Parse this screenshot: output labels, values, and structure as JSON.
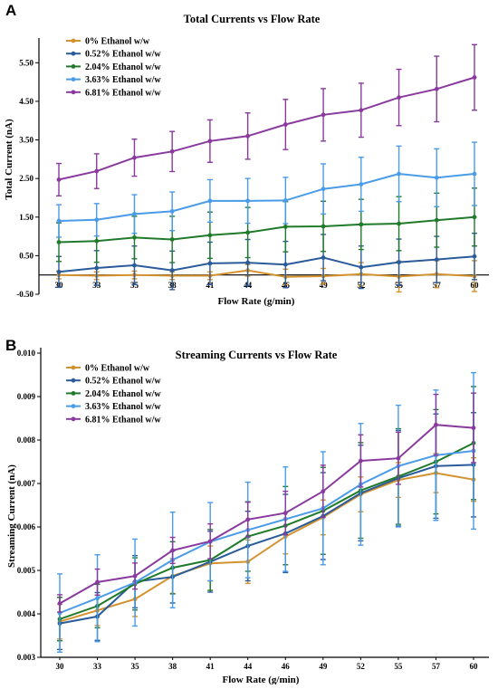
{
  "chart_data": [
    {
      "panel": "A",
      "type": "line",
      "title": "Total Currents vs Flow Rate",
      "xlabel": "Flow Rate (g/min)",
      "ylabel": "Total Current (nA)",
      "categories": [
        "30",
        "33",
        "35",
        "38",
        "41",
        "44",
        "46",
        "49",
        "52",
        "55",
        "57",
        "60"
      ],
      "ylim": [
        -0.5,
        6.0
      ],
      "yticks": [
        "-0.50",
        "0.50",
        "1.50",
        "2.50",
        "3.50",
        "4.50",
        "5.50"
      ],
      "ytick_values": [
        -0.5,
        0.5,
        1.5,
        2.5,
        3.5,
        4.5,
        5.5
      ],
      "legend_position": "top-left",
      "series": [
        {
          "name": "0% Ethanol w/w",
          "color": "#d4922e",
          "values": [
            0.0,
            -0.02,
            0.0,
            -0.02,
            -0.02,
            0.12,
            -0.05,
            -0.03,
            0.02,
            -0.04,
            0.02,
            -0.03
          ],
          "errors": [
            0.1,
            0.1,
            0.1,
            0.1,
            0.1,
            0.15,
            0.2,
            0.2,
            0.3,
            0.4,
            0.35,
            0.4
          ]
        },
        {
          "name": "0.52% Ethanol w/w",
          "color": "#2a5b9a",
          "values": [
            0.08,
            0.18,
            0.25,
            0.12,
            0.3,
            0.32,
            0.27,
            0.45,
            0.2,
            0.33,
            0.4,
            0.48
          ],
          "errors": [
            0.4,
            0.45,
            0.5,
            0.5,
            0.55,
            0.6,
            0.6,
            0.6,
            0.55,
            0.6,
            0.6,
            0.6
          ]
        },
        {
          "name": "2.04% Ethanol w/w",
          "color": "#1f7a2a",
          "values": [
            0.85,
            0.88,
            0.97,
            0.92,
            1.03,
            1.1,
            1.25,
            1.26,
            1.31,
            1.33,
            1.42,
            1.5
          ],
          "errors": [
            0.5,
            0.55,
            0.55,
            0.6,
            0.6,
            0.65,
            0.65,
            0.65,
            0.65,
            0.7,
            0.7,
            0.75
          ]
        },
        {
          "name": "3.63% Ethanol w/w",
          "color": "#4a9be8",
          "values": [
            1.4,
            1.43,
            1.58,
            1.65,
            1.92,
            1.92,
            1.93,
            2.23,
            2.35,
            2.62,
            2.52,
            2.62
          ],
          "errors": [
            0.42,
            0.42,
            0.5,
            0.5,
            0.55,
            0.58,
            0.6,
            0.65,
            0.7,
            0.72,
            0.75,
            0.82
          ]
        },
        {
          "name": "6.81% Ethanol w/w",
          "color": "#8a3a9e",
          "values": [
            2.47,
            2.69,
            3.04,
            3.2,
            3.47,
            3.6,
            3.9,
            4.15,
            4.27,
            4.6,
            4.82,
            5.12
          ],
          "errors": [
            0.42,
            0.45,
            0.48,
            0.52,
            0.55,
            0.6,
            0.65,
            0.68,
            0.7,
            0.73,
            0.85,
            0.85
          ]
        }
      ]
    },
    {
      "panel": "B",
      "type": "line",
      "title": "Streaming Currents vs Flow Rate",
      "xlabel": "Flow Rate (g/min)",
      "ylabel": "Streaming Current (nA)",
      "categories": [
        "30",
        "33",
        "35",
        "38",
        "41",
        "44",
        "46",
        "49",
        "52",
        "55",
        "57",
        "60"
      ],
      "ylim": [
        0.003,
        0.01
      ],
      "yticks": [
        "0.003",
        "0.004",
        "0.005",
        "0.006",
        "0.007",
        "0.008",
        "0.009",
        "0.010"
      ],
      "ytick_values": [
        0.003,
        0.004,
        0.005,
        0.006,
        0.007,
        0.008,
        0.009,
        0.01
      ],
      "legend_position": "top-left",
      "series": [
        {
          "name": "0% Ethanol w/w",
          "color": "#d4922e",
          "values": [
            0.00382,
            0.00408,
            0.00434,
            0.00487,
            0.00516,
            0.0052,
            0.00578,
            0.00622,
            0.00675,
            0.00708,
            0.00724,
            0.00709
          ],
          "errors": [
            0.0004,
            0.00035,
            0.0004,
            0.0004,
            0.0004,
            0.0005,
            0.0004,
            0.0004,
            0.0004,
            0.0004,
            0.00045,
            0.0005
          ]
        },
        {
          "name": "0.52% Ethanol w/w",
          "color": "#2a5b9a",
          "values": [
            0.00378,
            0.00394,
            0.00474,
            0.00485,
            0.0052,
            0.00556,
            0.00585,
            0.00625,
            0.00678,
            0.00712,
            0.0074,
            0.00743
          ],
          "errors": [
            0.0006,
            0.00055,
            0.0006,
            0.0006,
            0.0007,
            0.0008,
            0.0009,
            0.001,
            0.0011,
            0.0011,
            0.0012,
            0.0012
          ]
        },
        {
          "name": "2.04% Ethanol w/w",
          "color": "#1f7a2a",
          "values": [
            0.00388,
            0.00418,
            0.00469,
            0.00506,
            0.00524,
            0.00578,
            0.00603,
            0.00637,
            0.00684,
            0.00716,
            0.0075,
            0.00793
          ],
          "errors": [
            0.0005,
            0.0005,
            0.0006,
            0.0006,
            0.0007,
            0.0008,
            0.0009,
            0.001,
            0.0011,
            0.0011,
            0.0012,
            0.0013
          ]
        },
        {
          "name": "3.63% Ethanol w/w",
          "color": "#4a9be8",
          "values": [
            0.00402,
            0.00436,
            0.00472,
            0.00524,
            0.00566,
            0.00593,
            0.00618,
            0.00643,
            0.00698,
            0.0074,
            0.00765,
            0.00775
          ],
          "errors": [
            0.0009,
            0.001,
            0.001,
            0.0011,
            0.0009,
            0.0011,
            0.0012,
            0.0013,
            0.0014,
            0.0014,
            0.0015,
            0.0018
          ]
        },
        {
          "name": "6.81% Ethanol w/w",
          "color": "#8a3a9e",
          "values": [
            0.00424,
            0.00473,
            0.00487,
            0.00546,
            0.00567,
            0.00617,
            0.00632,
            0.00682,
            0.00752,
            0.00758,
            0.00835,
            0.00828
          ],
          "errors": [
            0.0002,
            0.0003,
            0.0003,
            0.0003,
            0.0004,
            0.0004,
            0.0005,
            0.0006,
            0.0006,
            0.0006,
            0.0007,
            0.0008
          ]
        }
      ]
    }
  ]
}
